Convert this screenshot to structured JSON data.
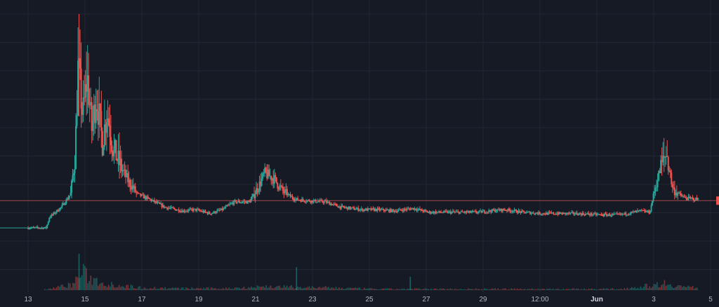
{
  "chart_data": {
    "type": "candlestick",
    "title": "",
    "xlabel": "",
    "ylabel": "",
    "grid": true,
    "colors": {
      "background": "#161a25",
      "grid": "#232734",
      "up": "#26a69a",
      "down": "#ef5350",
      "price_line": "#e35b5b"
    },
    "x_ticks": [
      {
        "label": "13",
        "bold": false
      },
      {
        "label": "15",
        "bold": false
      },
      {
        "label": "17",
        "bold": false
      },
      {
        "label": "19",
        "bold": false
      },
      {
        "label": "21",
        "bold": false
      },
      {
        "label": "23",
        "bold": false
      },
      {
        "label": "25",
        "bold": false
      },
      {
        "label": "27",
        "bold": false
      },
      {
        "label": "29",
        "bold": false
      },
      {
        "label": "12:00",
        "bold": false
      },
      {
        "label": "Jun",
        "bold": true
      },
      {
        "label": "3",
        "bold": false
      },
      {
        "label": "5",
        "bold": false
      }
    ],
    "x_range": [
      12.5,
      35.0
    ],
    "ylim": [
      0,
      100
    ],
    "current_price": 27.5,
    "price_trend": [
      [
        12.0,
        17
      ],
      [
        13.1,
        17
      ],
      [
        13.2,
        21
      ],
      [
        13.6,
        25
      ],
      [
        13.9,
        30
      ],
      [
        14.05,
        45
      ],
      [
        14.15,
        80
      ],
      [
        14.3,
        60
      ],
      [
        14.45,
        75
      ],
      [
        14.6,
        55
      ],
      [
        14.75,
        68
      ],
      [
        14.95,
        50
      ],
      [
        15.1,
        62
      ],
      [
        15.3,
        48
      ],
      [
        15.5,
        42
      ],
      [
        15.8,
        35
      ],
      [
        16.1,
        30
      ],
      [
        16.5,
        28
      ],
      [
        17.0,
        25
      ],
      [
        17.6,
        23.5
      ],
      [
        18.0,
        24
      ],
      [
        18.5,
        22.5
      ],
      [
        18.9,
        24
      ],
      [
        19.3,
        27
      ],
      [
        19.8,
        27
      ],
      [
        20.1,
        33
      ],
      [
        20.3,
        38
      ],
      [
        20.6,
        36
      ],
      [
        20.9,
        31
      ],
      [
        21.3,
        28
      ],
      [
        21.7,
        27.5
      ],
      [
        22.3,
        27
      ],
      [
        22.8,
        25
      ],
      [
        23.5,
        24
      ],
      [
        24.0,
        24
      ],
      [
        24.6,
        23.5
      ],
      [
        25.2,
        24.5
      ],
      [
        25.7,
        23
      ],
      [
        26.5,
        23
      ],
      [
        27.3,
        23
      ],
      [
        28.2,
        24
      ],
      [
        28.8,
        23
      ],
      [
        29.5,
        22.5
      ],
      [
        30.5,
        22.5
      ],
      [
        31.4,
        22
      ],
      [
        32.0,
        22
      ],
      [
        32.7,
        23.5
      ],
      [
        33.0,
        23
      ],
      [
        33.12,
        30
      ],
      [
        33.35,
        40
      ],
      [
        33.55,
        46
      ],
      [
        33.75,
        32
      ],
      [
        33.95,
        30
      ],
      [
        34.15,
        28.5
      ],
      [
        34.55,
        28
      ]
    ],
    "volume_trend": [
      [
        12.0,
        0
      ],
      [
        13.0,
        1
      ],
      [
        13.5,
        5
      ],
      [
        14.0,
        10
      ],
      [
        14.25,
        30
      ],
      [
        14.6,
        18
      ],
      [
        15.0,
        12
      ],
      [
        15.6,
        7
      ],
      [
        16.3,
        4
      ],
      [
        17.5,
        3
      ],
      [
        19.0,
        3
      ],
      [
        20.3,
        6
      ],
      [
        21.3,
        5
      ],
      [
        22.5,
        4
      ],
      [
        24.0,
        2
      ],
      [
        26.0,
        2
      ],
      [
        28.0,
        2
      ],
      [
        30.0,
        2
      ],
      [
        32.0,
        2
      ],
      [
        33.1,
        8
      ],
      [
        33.5,
        12
      ],
      [
        33.9,
        7
      ],
      [
        34.5,
        4
      ]
    ],
    "volume_spikes": [
      [
        14.18,
        60
      ],
      [
        21.35,
        38
      ],
      [
        25.1,
        22
      ]
    ]
  }
}
